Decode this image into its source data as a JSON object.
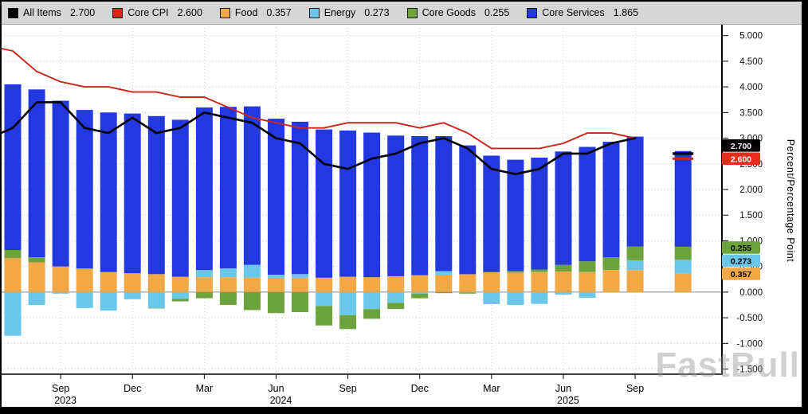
{
  "legend": {
    "items": [
      {
        "label": "All Items",
        "value": "2.700",
        "color": "#000000",
        "type": "line"
      },
      {
        "label": "Core CPI",
        "value": "2.600",
        "color": "#e02417",
        "type": "line"
      },
      {
        "label": "Food",
        "value": "0.357",
        "color": "#f2a844",
        "type": "bar"
      },
      {
        "label": "Energy",
        "value": "0.273",
        "color": "#6bc7e9",
        "type": "bar"
      },
      {
        "label": "Core Goods",
        "value": "0.255",
        "color": "#6ca33c",
        "type": "bar"
      },
      {
        "label": "Core Services",
        "value": "1.865",
        "color": "#2438e0",
        "type": "bar"
      }
    ]
  },
  "axis": {
    "y_title": "Percent/Percentage Point"
  },
  "value_badges": [
    {
      "series": "All Items",
      "label": "2.700",
      "value": 2.7,
      "bg": "#000000",
      "fg": "#ffffff"
    },
    {
      "series": "Core CPI",
      "label": "2.600",
      "value": 2.6,
      "bg": "#ea2c1c",
      "fg": "#ffffff"
    },
    {
      "series": "Core Goods",
      "label": "0.255",
      "value": 0.255,
      "bg": "#6ca33c",
      "fg": "#000000"
    },
    {
      "series": "Energy",
      "label": "0.273",
      "value": 0.273,
      "bg": "#6bc7e9",
      "fg": "#000000"
    },
    {
      "series": "Food",
      "label": "0.357",
      "value": 0.357,
      "bg": "#f2a844",
      "fg": "#000000"
    }
  ],
  "watermark": "FastBull",
  "chart_data": {
    "type": "stacked-bar+line",
    "x": [
      "2023-06",
      "2023-07",
      "2023-08",
      "2023-09",
      "2023-10",
      "2023-11",
      "2023-12",
      "2024-01",
      "2024-02",
      "2024-03",
      "2024-04",
      "2024-05",
      "2024-06",
      "2024-07",
      "2024-08",
      "2024-09",
      "2024-10",
      "2024-11",
      "2024-12",
      "2025-01",
      "2025-02",
      "2025-03",
      "2025-04",
      "2025-05",
      "2025-06",
      "2025-07",
      "2025-08",
      "2025-09",
      "2025-10",
      "2025-11"
    ],
    "bar_series": [
      {
        "name": "Food",
        "color": "#f2a844",
        "values": [
          null,
          0.66,
          0.58,
          0.5,
          0.45,
          0.39,
          0.36,
          0.35,
          0.3,
          0.29,
          0.29,
          0.28,
          0.27,
          0.28,
          0.28,
          0.3,
          0.29,
          0.31,
          0.33,
          0.34,
          0.35,
          0.39,
          0.38,
          0.39,
          0.4,
          0.39,
          0.42,
          0.43,
          null,
          0.357
        ]
      },
      {
        "name": "Energy",
        "color": "#6bc7e9",
        "values": [
          null,
          -0.85,
          -0.25,
          -0.03,
          -0.31,
          -0.36,
          -0.14,
          -0.31,
          -0.13,
          0.14,
          0.17,
          0.25,
          0.07,
          0.07,
          -0.27,
          -0.45,
          -0.33,
          -0.21,
          -0.03,
          0.07,
          -0.01,
          -0.22,
          -0.25,
          -0.23,
          -0.05,
          -0.11,
          0.01,
          0.19,
          null,
          0.273
        ]
      },
      {
        "name": "Core Goods",
        "color": "#6ca33c",
        "values": [
          null,
          0.16,
          0.1,
          0.0,
          0.01,
          0.0,
          0.01,
          -0.01,
          -0.05,
          -0.12,
          -0.25,
          -0.35,
          -0.41,
          -0.39,
          -0.38,
          -0.27,
          -0.19,
          -0.12,
          -0.09,
          -0.02,
          -0.02,
          -0.01,
          0.03,
          0.05,
          0.13,
          0.21,
          0.25,
          0.27,
          null,
          0.255
        ]
      },
      {
        "name": "Core Services",
        "color": "#2438e0",
        "values": [
          null,
          3.23,
          3.27,
          3.23,
          3.09,
          3.11,
          3.11,
          3.08,
          3.06,
          3.17,
          3.15,
          3.09,
          3.04,
          2.97,
          2.89,
          2.85,
          2.82,
          2.74,
          2.71,
          2.63,
          2.51,
          2.27,
          2.17,
          2.18,
          2.21,
          2.23,
          2.25,
          2.14,
          null,
          1.865
        ]
      }
    ],
    "line_series": [
      {
        "name": "All Items",
        "color": "#000000",
        "values": [
          3.0,
          3.2,
          3.7,
          3.7,
          3.2,
          3.1,
          3.4,
          3.1,
          3.2,
          3.5,
          3.4,
          3.3,
          3.0,
          2.9,
          2.5,
          2.4,
          2.6,
          2.7,
          2.9,
          3.0,
          2.8,
          2.4,
          2.3,
          2.4,
          2.7,
          2.7,
          2.9,
          3.0,
          null,
          2.7
        ]
      },
      {
        "name": "Core CPI",
        "color": "#cc2418",
        "values": [
          4.8,
          4.7,
          4.3,
          4.1,
          4.0,
          4.0,
          3.9,
          3.9,
          3.8,
          3.8,
          3.6,
          3.4,
          3.3,
          3.2,
          3.2,
          3.3,
          3.3,
          3.3,
          3.2,
          3.3,
          3.1,
          2.8,
          2.8,
          2.8,
          2.9,
          3.1,
          3.1,
          3.0,
          null,
          2.6
        ]
      }
    ],
    "y_axis": {
      "ticks": [
        "5.000",
        "4.500",
        "4.000",
        "3.500",
        "3.000",
        "2.500",
        "2.000",
        "1.500",
        "1.000",
        "0.500",
        "0.000",
        "-0.500",
        "-1.000",
        "-1.500"
      ],
      "ylim": [
        -1.6,
        5.15
      ],
      "grid": true
    },
    "x_axis": {
      "ticks": [
        {
          "index": 3,
          "label": "Sep"
        },
        {
          "index": 6,
          "label": "Dec"
        },
        {
          "index": 9,
          "label": "Mar"
        },
        {
          "index": 12,
          "label": "Jun"
        },
        {
          "index": 15,
          "label": "Sep"
        },
        {
          "index": 18,
          "label": "Dec"
        },
        {
          "index": 21,
          "label": "Mar"
        },
        {
          "index": 24,
          "label": "Jun"
        },
        {
          "index": 27,
          "label": "Sep"
        }
      ],
      "year_labels": [
        {
          "index": 3,
          "label": "2023"
        },
        {
          "index": 12,
          "label": "2024"
        },
        {
          "index": 24,
          "label": "2025"
        }
      ]
    },
    "legend_position": "top"
  }
}
